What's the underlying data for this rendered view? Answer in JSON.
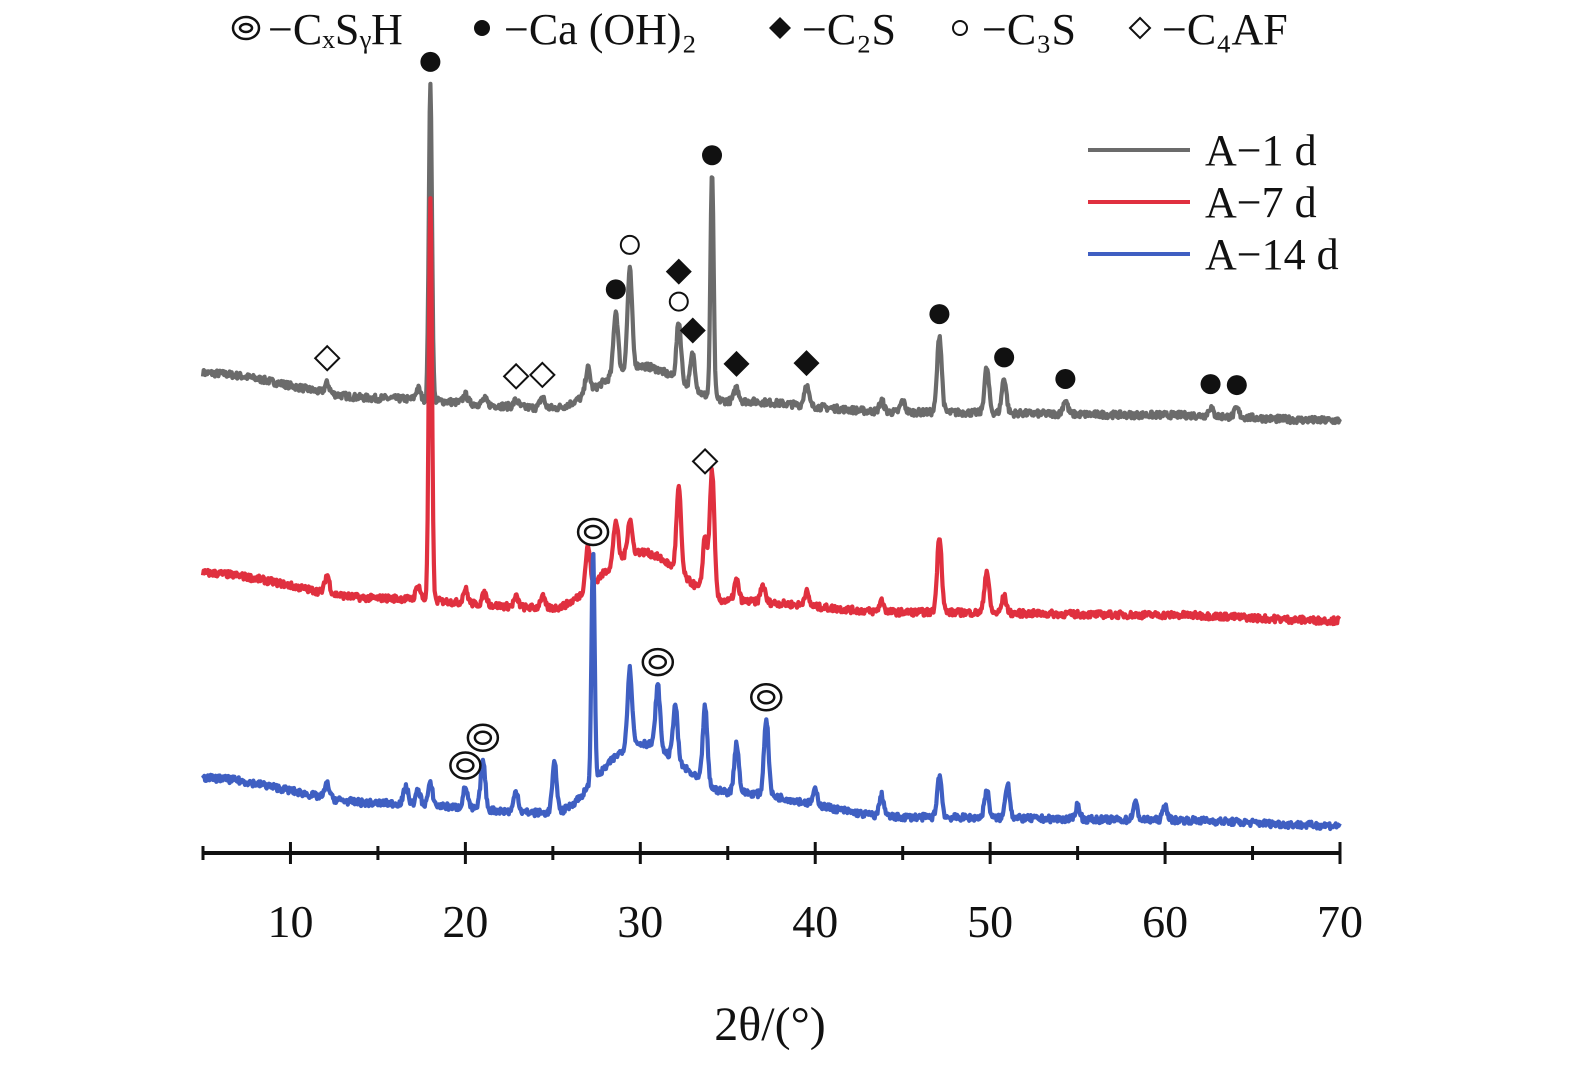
{
  "chart_data": {
    "type": "line",
    "xlabel": "2θ/(°)",
    "xlim": [
      5,
      70
    ],
    "xticks": [
      10,
      20,
      30,
      40,
      50,
      60,
      70
    ],
    "xminor": [
      5,
      15,
      25,
      35,
      45,
      55,
      65
    ],
    "legend_position": "top-right",
    "phase_key": [
      {
        "symbol": "double-circle",
        "label": "−CₓSᵧH"
      },
      {
        "symbol": "filled-circle",
        "label": "−Ca (OH)₂"
      },
      {
        "symbol": "filled-diamond",
        "label": "−C₂S"
      },
      {
        "symbol": "open-circle",
        "label": "−C₃S"
      },
      {
        "symbol": "open-diamond",
        "label": "−C₄AF"
      }
    ],
    "series": [
      {
        "name": "A−1 d",
        "color": "#6b6b6b",
        "baseline": [
          [
            5,
            0.3
          ],
          [
            15,
            0.12
          ],
          [
            25,
            0.05
          ],
          [
            30,
            0.35
          ],
          [
            35,
            0.1
          ],
          [
            45,
            0.02
          ],
          [
            60,
            0.0
          ],
          [
            70,
            -0.04
          ]
        ],
        "peaks": [
          [
            12.1,
            0.07
          ],
          [
            17.3,
            0.08
          ],
          [
            18.0,
            2.25
          ],
          [
            20.0,
            0.06
          ],
          [
            21.1,
            0.04
          ],
          [
            22.9,
            0.05
          ],
          [
            24.4,
            0.08
          ],
          [
            27.0,
            0.18
          ],
          [
            28.6,
            0.45
          ],
          [
            29.4,
            0.7
          ],
          [
            32.2,
            0.42
          ],
          [
            33.0,
            0.25
          ],
          [
            34.1,
            1.62
          ],
          [
            35.5,
            0.1
          ],
          [
            39.5,
            0.15
          ],
          [
            43.8,
            0.08
          ],
          [
            45.0,
            0.08
          ],
          [
            47.1,
            0.55
          ],
          [
            49.8,
            0.32
          ],
          [
            50.8,
            0.25
          ],
          [
            54.3,
            0.1
          ],
          [
            62.6,
            0.06
          ],
          [
            64.1,
            0.06
          ]
        ]
      },
      {
        "name": "A−7 d",
        "color": "#e0303f",
        "baseline": [
          [
            5,
            0.3
          ],
          [
            15,
            0.12
          ],
          [
            25,
            0.05
          ],
          [
            30,
            0.45
          ],
          [
            35,
            0.1
          ],
          [
            45,
            0.02
          ],
          [
            60,
            0.0
          ],
          [
            70,
            -0.04
          ]
        ],
        "peaks": [
          [
            12.1,
            0.13
          ],
          [
            17.3,
            0.1
          ],
          [
            18.0,
            2.85
          ],
          [
            20.0,
            0.1
          ],
          [
            21.1,
            0.08
          ],
          [
            22.9,
            0.07
          ],
          [
            24.4,
            0.08
          ],
          [
            27.0,
            0.3
          ],
          [
            28.6,
            0.3
          ],
          [
            29.4,
            0.25
          ],
          [
            32.2,
            0.6
          ],
          [
            33.7,
            0.4
          ],
          [
            34.1,
            0.9
          ],
          [
            35.5,
            0.15
          ],
          [
            37.0,
            0.12
          ],
          [
            39.5,
            0.1
          ],
          [
            43.8,
            0.08
          ],
          [
            47.1,
            0.55
          ],
          [
            49.8,
            0.3
          ],
          [
            50.8,
            0.12
          ]
        ]
      },
      {
        "name": "A−14 d",
        "color": "#3f5fc2",
        "baseline": [
          [
            5,
            0.3
          ],
          [
            15,
            0.12
          ],
          [
            25,
            0.05
          ],
          [
            30,
            0.55
          ],
          [
            35,
            0.2
          ],
          [
            45,
            0.02
          ],
          [
            60,
            0.0
          ],
          [
            70,
            -0.04
          ]
        ],
        "peaks": [
          [
            12.1,
            0.1
          ],
          [
            16.6,
            0.12
          ],
          [
            17.3,
            0.1
          ],
          [
            18.0,
            0.15
          ],
          [
            20.0,
            0.15
          ],
          [
            21.0,
            0.35
          ],
          [
            22.9,
            0.15
          ],
          [
            25.1,
            0.35
          ],
          [
            27.3,
            1.65
          ],
          [
            29.4,
            0.55
          ],
          [
            31.0,
            0.45
          ],
          [
            32.0,
            0.4
          ],
          [
            33.7,
            0.55
          ],
          [
            35.5,
            0.35
          ],
          [
            37.2,
            0.55
          ],
          [
            40.0,
            0.1
          ],
          [
            43.8,
            0.15
          ],
          [
            47.1,
            0.3
          ],
          [
            49.8,
            0.2
          ],
          [
            51.0,
            0.25
          ],
          [
            55.0,
            0.1
          ],
          [
            58.3,
            0.12
          ],
          [
            60.0,
            0.1
          ]
        ]
      }
    ],
    "phase_markers": [
      {
        "series": 0,
        "symbol": "filled-circle",
        "x": 18.0
      },
      {
        "series": 0,
        "symbol": "filled-circle",
        "x": 28.6
      },
      {
        "series": 0,
        "symbol": "open-circle",
        "x": 29.4
      },
      {
        "series": 0,
        "symbol": "open-circle",
        "x": 32.2
      },
      {
        "series": 0,
        "symbol": "filled-diamond",
        "x": 32.2
      },
      {
        "series": 0,
        "symbol": "filled-diamond",
        "x": 33.0
      },
      {
        "series": 0,
        "symbol": "filled-circle",
        "x": 34.1
      },
      {
        "series": 0,
        "symbol": "filled-diamond",
        "x": 35.5
      },
      {
        "series": 0,
        "symbol": "filled-diamond",
        "x": 39.5
      },
      {
        "series": 0,
        "symbol": "filled-circle",
        "x": 47.1
      },
      {
        "series": 0,
        "symbol": "filled-circle",
        "x": 50.8
      },
      {
        "series": 0,
        "symbol": "filled-circle",
        "x": 54.3
      },
      {
        "series": 0,
        "symbol": "filled-circle",
        "x": 62.6
      },
      {
        "series": 0,
        "symbol": "filled-circle",
        "x": 64.1
      },
      {
        "series": 0,
        "symbol": "open-diamond",
        "x": 12.1
      },
      {
        "series": 0,
        "symbol": "open-diamond",
        "x": 22.9
      },
      {
        "series": 0,
        "symbol": "open-diamond",
        "x": 24.4
      },
      {
        "series": 1,
        "symbol": "open-diamond",
        "x": 33.7
      },
      {
        "series": 2,
        "symbol": "double-circle",
        "x": 20.0
      },
      {
        "series": 2,
        "symbol": "double-circle",
        "x": 21.0
      },
      {
        "series": 2,
        "symbol": "double-circle",
        "x": 27.3
      },
      {
        "series": 2,
        "symbol": "double-circle",
        "x": 31.0
      },
      {
        "series": 2,
        "symbol": "double-circle",
        "x": 37.2
      }
    ]
  }
}
